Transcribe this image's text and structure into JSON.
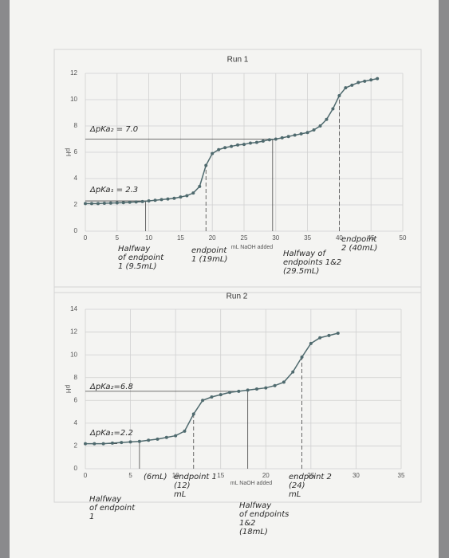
{
  "chart_data": [
    {
      "type": "line",
      "title": "Run 1",
      "x_label": "mL NaOH added",
      "y_label": "pH",
      "x": [
        0,
        1,
        2,
        3,
        4,
        5,
        6,
        7,
        8,
        9,
        10,
        11,
        12,
        13,
        14,
        15,
        16,
        17,
        18,
        19,
        20,
        21,
        22,
        23,
        24,
        25,
        26,
        27,
        28,
        29,
        30,
        31,
        32,
        33,
        34,
        35,
        36,
        37,
        38,
        39,
        40,
        41,
        42,
        43,
        44,
        45,
        46
      ],
      "series": [
        {
          "name": "Run 1",
          "color": "#4f6a6e",
          "values": [
            2.1,
            2.1,
            2.1,
            2.12,
            2.14,
            2.15,
            2.17,
            2.2,
            2.22,
            2.25,
            2.3,
            2.35,
            2.4,
            2.45,
            2.5,
            2.6,
            2.7,
            2.9,
            3.4,
            5.0,
            5.9,
            6.2,
            6.35,
            6.45,
            6.55,
            6.6,
            6.7,
            6.75,
            6.85,
            6.95,
            7.0,
            7.1,
            7.2,
            7.3,
            7.4,
            7.5,
            7.7,
            8.0,
            8.5,
            9.3,
            10.3,
            10.9,
            11.1,
            11.3,
            11.4,
            11.5,
            11.6
          ]
        }
      ],
      "xlim": [
        0,
        50
      ],
      "xticks": [
        0,
        5,
        10,
        15,
        20,
        25,
        30,
        35,
        40,
        45,
        50
      ],
      "ylim": [
        0,
        12
      ],
      "yticks": [
        0,
        2,
        4,
        6,
        8,
        10,
        12
      ],
      "grid": true,
      "vlines": [
        9.5,
        19,
        29.5,
        40
      ],
      "hlines": [
        7.0,
        2.3
      ],
      "annotations": [
        [
          "ΔpKa₂ = 7.0"
        ],
        [
          "ΔpKa₁ = 2.3"
        ],
        [
          "Halfway",
          "of endpoint",
          "1 (9.5mL)"
        ],
        [
          "endpoint",
          "1 (19mL)"
        ],
        [
          "Halfway of",
          "endpoints 1&2",
          "(29.5mL)"
        ],
        [
          "endpoint",
          "2 (40mL)"
        ]
      ]
    },
    {
      "type": "line",
      "title": "Run 2",
      "x_label": "mL NaOH added",
      "y_label": "pH",
      "x": [
        0,
        1,
        2,
        3,
        4,
        5,
        6,
        7,
        8,
        9,
        10,
        11,
        12,
        13,
        14,
        15,
        16,
        17,
        18,
        19,
        20,
        21,
        22,
        23,
        24,
        25,
        26,
        27,
        28
      ],
      "series": [
        {
          "name": "Run 2",
          "color": "#4f6a6e",
          "values": [
            2.2,
            2.2,
            2.2,
            2.25,
            2.3,
            2.35,
            2.4,
            2.5,
            2.6,
            2.75,
            2.9,
            3.3,
            4.8,
            6.0,
            6.3,
            6.5,
            6.7,
            6.8,
            6.9,
            7.0,
            7.1,
            7.3,
            7.6,
            8.5,
            9.8,
            11.0,
            11.5,
            11.7,
            11.9
          ]
        }
      ],
      "xlim": [
        0,
        35
      ],
      "xticks": [
        0,
        5,
        10,
        15,
        20,
        25,
        30,
        35
      ],
      "ylim": [
        0,
        14
      ],
      "yticks": [
        0,
        2,
        4,
        6,
        8,
        10,
        12,
        14
      ],
      "grid": true,
      "vlines": [
        6,
        12,
        18,
        24
      ],
      "hlines": [
        6.8,
        2.2
      ],
      "annotations": [
        [
          "ΔpKa₂=6.8"
        ],
        [
          "ΔpKa₁=2.2"
        ],
        [
          "(6mL)"
        ],
        [
          "Halfway",
          "of endpoint",
          "1"
        ],
        [
          "endpoint 1",
          "(12)",
          "mL"
        ],
        [
          "Halfway",
          "of endpoints",
          "1&2",
          "(18mL)"
        ],
        [
          "endpoint 2",
          "(24)",
          "mL"
        ]
      ]
    }
  ]
}
